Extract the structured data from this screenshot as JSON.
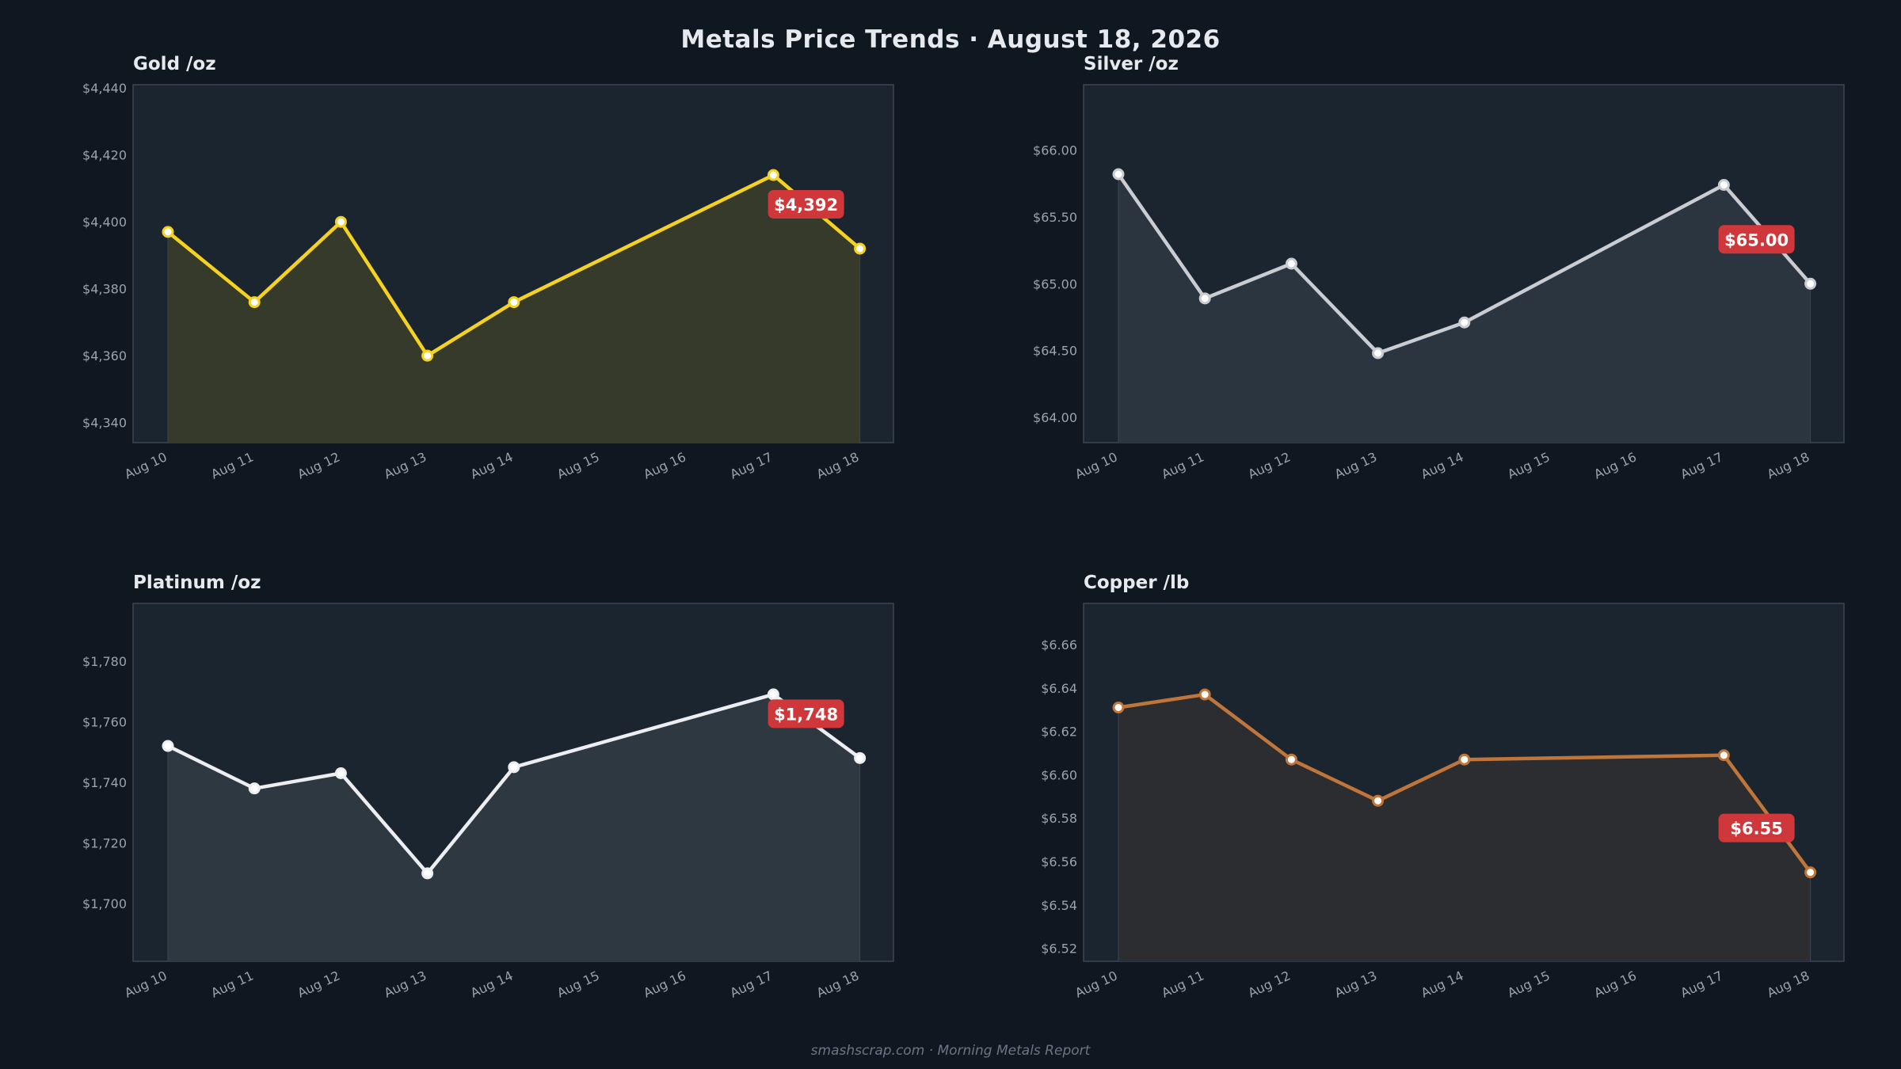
{
  "title": "Metals Price Trends  ·  August 18, 2026",
  "footer": "smashscrap.com  ·  Morning Metals Report",
  "colors": {
    "background": "#0f1720",
    "panel": "#1b2530",
    "badge": "#d0373a"
  },
  "chart_data": [
    {
      "type": "line",
      "title": "Gold  /oz",
      "x": [
        "Aug 10",
        "Aug 11",
        "Aug 12",
        "Aug 13",
        "Aug 14",
        "Aug 15",
        "Aug 16",
        "Aug 17",
        "Aug 18"
      ],
      "x_tick_labels": [
        "Aug 10",
        "Aug 11",
        "Aug 12",
        "Aug 13",
        "Aug 14",
        "Aug 15",
        "Aug 16",
        "Aug 17",
        "Aug 18"
      ],
      "points": [
        {
          "x": "Aug 10",
          "y": 4397
        },
        {
          "x": "Aug 11",
          "y": 4376
        },
        {
          "x": "Aug 12",
          "y": 4400
        },
        {
          "x": "Aug 13",
          "y": 4360
        },
        {
          "x": "Aug 14",
          "y": 4376
        },
        {
          "x": "Aug 17",
          "y": 4414
        },
        {
          "x": "Aug 18",
          "y": 4392
        }
      ],
      "ylim": [
        4334,
        4441
      ],
      "y_ticks": [
        4340,
        4360,
        4380,
        4400,
        4420,
        4440
      ],
      "y_tick_labels": [
        "$4,340",
        "$4,360",
        "$4,380",
        "$4,400",
        "$4,420",
        "$4,440"
      ],
      "latest_label": "$4,392",
      "color": "#f5d21f",
      "fill": "#353a2a",
      "grid": false
    },
    {
      "type": "line",
      "title": "Silver  /oz",
      "x": [
        "Aug 10",
        "Aug 11",
        "Aug 12",
        "Aug 13",
        "Aug 14",
        "Aug 15",
        "Aug 16",
        "Aug 17",
        "Aug 18"
      ],
      "x_tick_labels": [
        "Aug 10",
        "Aug 11",
        "Aug 12",
        "Aug 13",
        "Aug 14",
        "Aug 15",
        "Aug 16",
        "Aug 17",
        "Aug 18"
      ],
      "points": [
        {
          "x": "Aug 10",
          "y": 65.82
        },
        {
          "x": "Aug 11",
          "y": 64.89
        },
        {
          "x": "Aug 12",
          "y": 65.15
        },
        {
          "x": "Aug 13",
          "y": 64.48
        },
        {
          "x": "Aug 14",
          "y": 64.71
        },
        {
          "x": "Aug 17",
          "y": 65.74
        },
        {
          "x": "Aug 18",
          "y": 65.0
        }
      ],
      "ylim": [
        63.81,
        66.49
      ],
      "y_ticks": [
        64.0,
        64.5,
        65.0,
        65.5,
        66.0
      ],
      "y_tick_labels": [
        "$64.00",
        "$64.50",
        "$65.00",
        "$65.50",
        "$66.00"
      ],
      "latest_label": "$65.00",
      "color": "#c9ccd1",
      "fill": "#2b3540",
      "grid": false
    },
    {
      "type": "line",
      "title": "Platinum  /oz",
      "x": [
        "Aug 10",
        "Aug 11",
        "Aug 12",
        "Aug 13",
        "Aug 14",
        "Aug 15",
        "Aug 16",
        "Aug 17",
        "Aug 18"
      ],
      "x_tick_labels": [
        "Aug 10",
        "Aug 11",
        "Aug 12",
        "Aug 13",
        "Aug 14",
        "Aug 15",
        "Aug 16",
        "Aug 17",
        "Aug 18"
      ],
      "points": [
        {
          "x": "Aug 10",
          "y": 1752
        },
        {
          "x": "Aug 11",
          "y": 1738
        },
        {
          "x": "Aug 12",
          "y": 1743
        },
        {
          "x": "Aug 13",
          "y": 1710
        },
        {
          "x": "Aug 14",
          "y": 1745
        },
        {
          "x": "Aug 17",
          "y": 1769
        },
        {
          "x": "Aug 18",
          "y": 1748
        }
      ],
      "ylim": [
        1681,
        1799
      ],
      "y_ticks": [
        1700,
        1720,
        1740,
        1760,
        1780
      ],
      "y_tick_labels": [
        "$1,700",
        "$1,720",
        "$1,740",
        "$1,760",
        "$1,780"
      ],
      "latest_label": "$1,748",
      "color": "#eceef1",
      "fill": "#2e3841",
      "grid": false
    },
    {
      "type": "line",
      "title": "Copper  /lb",
      "x": [
        "Aug 10",
        "Aug 11",
        "Aug 12",
        "Aug 13",
        "Aug 14",
        "Aug 15",
        "Aug 16",
        "Aug 17",
        "Aug 18"
      ],
      "x_tick_labels": [
        "Aug 10",
        "Aug 11",
        "Aug 12",
        "Aug 13",
        "Aug 14",
        "Aug 15",
        "Aug 16",
        "Aug 17",
        "Aug 18"
      ],
      "points": [
        {
          "x": "Aug 10",
          "y": 6.631
        },
        {
          "x": "Aug 11",
          "y": 6.637
        },
        {
          "x": "Aug 12",
          "y": 6.607
        },
        {
          "x": "Aug 13",
          "y": 6.588
        },
        {
          "x": "Aug 14",
          "y": 6.607
        },
        {
          "x": "Aug 17",
          "y": 6.609
        },
        {
          "x": "Aug 18",
          "y": 6.555
        }
      ],
      "ylim": [
        6.514,
        6.679
      ],
      "y_ticks": [
        6.52,
        6.54,
        6.56,
        6.58,
        6.6,
        6.62,
        6.64,
        6.66
      ],
      "y_tick_labels": [
        "$6.52",
        "$6.54",
        "$6.56",
        "$6.58",
        "$6.60",
        "$6.62",
        "$6.64",
        "$6.66"
      ],
      "latest_label": "$6.55",
      "color": "#c0763a",
      "fill": "#2b2d30",
      "grid": false
    }
  ]
}
